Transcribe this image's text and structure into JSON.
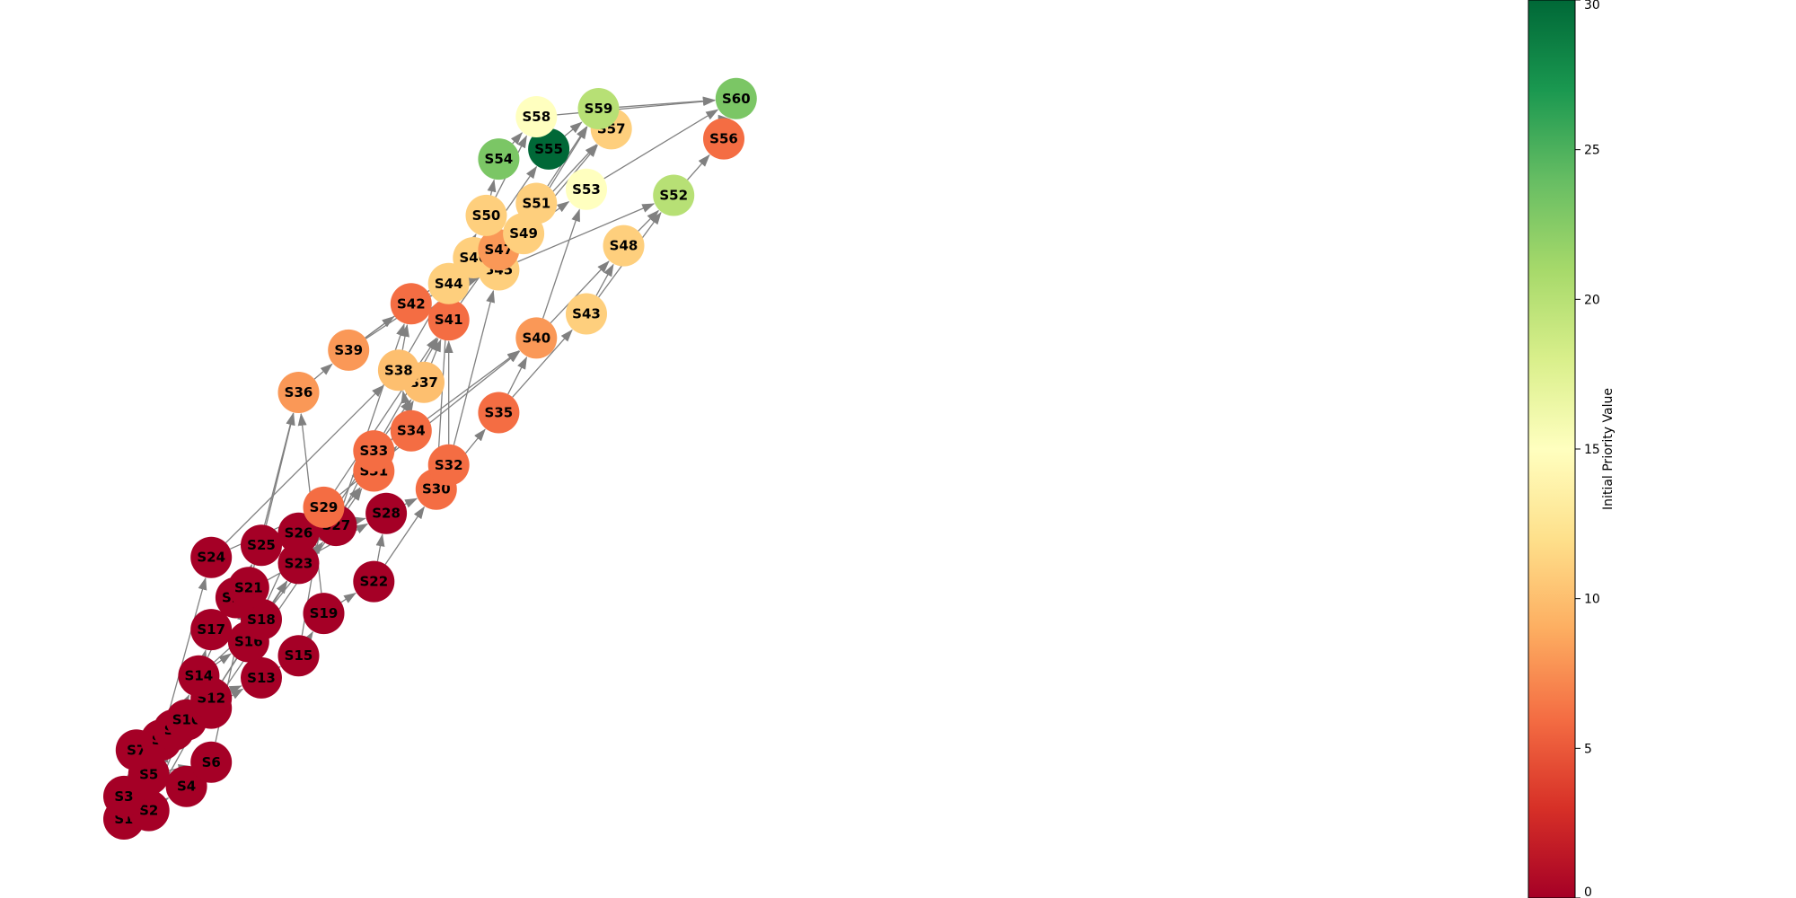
{
  "colorbar": {
    "label": "Initial Priority Value",
    "min": 0,
    "max": 30,
    "ticks": [
      0,
      5,
      10,
      15,
      20,
      25,
      30
    ],
    "colormap": [
      "#a50026",
      "#d73027",
      "#f46d43",
      "#fdae61",
      "#fee08b",
      "#ffffbf",
      "#d9ef8b",
      "#a6d96a",
      "#66bd63",
      "#1a9850",
      "#006837"
    ]
  },
  "nodes": [
    {
      "id": "S1",
      "x": -3.05,
      "y": 1.69,
      "value": 0
    },
    {
      "id": "S2",
      "x": -2.31,
      "y": 1.94,
      "value": 0
    },
    {
      "id": "S3",
      "x": -3.05,
      "y": 2.36,
      "value": 0
    },
    {
      "id": "S4",
      "x": -1.19,
      "y": 2.66,
      "value": 0
    },
    {
      "id": "S5",
      "x": -2.31,
      "y": 3.02,
      "value": 0
    },
    {
      "id": "S6",
      "x": -0.45,
      "y": 3.38,
      "value": 0
    },
    {
      "id": "S7",
      "x": -2.68,
      "y": 3.74,
      "value": 0
    },
    {
      "id": "S8",
      "x": -1.94,
      "y": 4.04,
      "value": 0
    },
    {
      "id": "S9",
      "x": -1.57,
      "y": 4.34,
      "value": 0
    },
    {
      "id": "S10",
      "x": -1.19,
      "y": 4.64,
      "value": 0
    },
    {
      "id": "S11",
      "x": -0.45,
      "y": 4.99,
      "value": 0
    },
    {
      "id": "S12",
      "x": -0.45,
      "y": 5.29,
      "value": 0
    },
    {
      "id": "S13",
      "x": 1.04,
      "y": 5.89,
      "value": 0
    },
    {
      "id": "S14",
      "x": -0.82,
      "y": 5.95,
      "value": 0
    },
    {
      "id": "S15",
      "x": 2.15,
      "y": 6.55,
      "value": 0
    },
    {
      "id": "S16",
      "x": 0.66,
      "y": 6.97,
      "value": 0
    },
    {
      "id": "S17",
      "x": -0.45,
      "y": 7.33,
      "value": 0
    },
    {
      "id": "S18",
      "x": 1.04,
      "y": 7.63,
      "value": 0
    },
    {
      "id": "S19",
      "x": 2.9,
      "y": 7.81,
      "value": 0
    },
    {
      "id": "S20",
      "x": 0.29,
      "y": 8.28,
      "value": 0
    },
    {
      "id": "S21",
      "x": 0.66,
      "y": 8.58,
      "value": 0
    },
    {
      "id": "S22",
      "x": 4.39,
      "y": 8.76,
      "value": 0
    },
    {
      "id": "S23",
      "x": 2.15,
      "y": 9.3,
      "value": 0
    },
    {
      "id": "S24",
      "x": -0.45,
      "y": 9.48,
      "value": 0
    },
    {
      "id": "S25",
      "x": 1.04,
      "y": 9.84,
      "value": 0
    },
    {
      "id": "S26",
      "x": 2.15,
      "y": 10.2,
      "value": 0
    },
    {
      "id": "S27",
      "x": 3.27,
      "y": 10.43,
      "value": 0
    },
    {
      "id": "S28",
      "x": 4.76,
      "y": 10.79,
      "value": 0
    },
    {
      "id": "S29",
      "x": 2.9,
      "y": 10.97,
      "value": 6
    },
    {
      "id": "S30",
      "x": 6.25,
      "y": 11.51,
      "value": 6
    },
    {
      "id": "S31",
      "x": 4.39,
      "y": 12.05,
      "value": 6
    },
    {
      "id": "S32",
      "x": 6.62,
      "y": 12.23,
      "value": 6
    },
    {
      "id": "S33",
      "x": 4.39,
      "y": 12.65,
      "value": 6
    },
    {
      "id": "S34",
      "x": 5.5,
      "y": 13.25,
      "value": 6
    },
    {
      "id": "S35",
      "x": 8.11,
      "y": 13.79,
      "value": 6
    },
    {
      "id": "S36",
      "x": 2.15,
      "y": 14.39,
      "value": 8
    },
    {
      "id": "S37",
      "x": 5.88,
      "y": 14.69,
      "value": 10
    },
    {
      "id": "S38",
      "x": 5.13,
      "y": 15.05,
      "value": 10
    },
    {
      "id": "S39",
      "x": 3.64,
      "y": 15.65,
      "value": 8
    },
    {
      "id": "S40",
      "x": 9.23,
      "y": 16.01,
      "value": 8
    },
    {
      "id": "S41",
      "x": 6.62,
      "y": 16.55,
      "value": 6
    },
    {
      "id": "S42",
      "x": 5.5,
      "y": 17.03,
      "value": 6
    },
    {
      "id": "S43",
      "x": 10.72,
      "y": 16.73,
      "value": 11
    },
    {
      "id": "S44",
      "x": 6.62,
      "y": 17.63,
      "value": 11
    },
    {
      "id": "S45",
      "x": 8.11,
      "y": 18.04,
      "value": 11
    },
    {
      "id": "S46",
      "x": 7.36,
      "y": 18.4,
      "value": 11
    },
    {
      "id": "S47",
      "x": 8.11,
      "y": 18.64,
      "value": 8
    },
    {
      "id": "S48",
      "x": 11.83,
      "y": 18.76,
      "value": 11
    },
    {
      "id": "S49",
      "x": 8.85,
      "y": 19.12,
      "value": 11
    },
    {
      "id": "S50",
      "x": 7.74,
      "y": 19.66,
      "value": 11
    },
    {
      "id": "S51",
      "x": 9.23,
      "y": 20.02,
      "value": 11
    },
    {
      "id": "S52",
      "x": 13.32,
      "y": 20.26,
      "value": 20
    },
    {
      "id": "S53",
      "x": 10.72,
      "y": 20.44,
      "value": 15
    },
    {
      "id": "S54",
      "x": 8.11,
      "y": 21.34,
      "value": 23
    },
    {
      "id": "S55",
      "x": 9.6,
      "y": 21.64,
      "value": 30
    },
    {
      "id": "S56",
      "x": 14.81,
      "y": 21.94,
      "value": 6
    },
    {
      "id": "S57",
      "x": 11.46,
      "y": 22.24,
      "value": 11
    },
    {
      "id": "S58",
      "x": 9.23,
      "y": 22.6,
      "value": 15
    },
    {
      "id": "S59",
      "x": 11.08,
      "y": 22.84,
      "value": 20
    },
    {
      "id": "S60",
      "x": 15.18,
      "y": 23.14,
      "value": 23
    }
  ],
  "edges": [
    [
      "S1",
      "S2"
    ],
    [
      "S1",
      "S3"
    ],
    [
      "S2",
      "S4"
    ],
    [
      "S3",
      "S5"
    ],
    [
      "S3",
      "S7"
    ],
    [
      "S2",
      "S9"
    ],
    [
      "S5",
      "S6"
    ],
    [
      "S4",
      "S6"
    ],
    [
      "S2",
      "S10"
    ],
    [
      "S2",
      "S12"
    ],
    [
      "S7",
      "S8"
    ],
    [
      "S8",
      "S9"
    ],
    [
      "S9",
      "S10"
    ],
    [
      "S10",
      "S11"
    ],
    [
      "S5",
      "S14"
    ],
    [
      "S11",
      "S13"
    ],
    [
      "S12",
      "S13"
    ],
    [
      "S13",
      "S15"
    ],
    [
      "S15",
      "S19"
    ],
    [
      "S19",
      "S22"
    ],
    [
      "S22",
      "S28"
    ],
    [
      "S8",
      "S24"
    ],
    [
      "S14",
      "S17"
    ],
    [
      "S14",
      "S16"
    ],
    [
      "S14",
      "S18"
    ],
    [
      "S14",
      "S20"
    ],
    [
      "S17",
      "S21"
    ],
    [
      "S12",
      "S23"
    ],
    [
      "S16",
      "S23"
    ],
    [
      "S16",
      "S26"
    ],
    [
      "S18",
      "S27"
    ],
    [
      "S18",
      "S23"
    ],
    [
      "S20",
      "S25"
    ],
    [
      "S21",
      "S36"
    ],
    [
      "S24",
      "S29"
    ],
    [
      "S24",
      "S38"
    ],
    [
      "S25",
      "S36"
    ],
    [
      "S26",
      "S27"
    ],
    [
      "S23",
      "S31"
    ],
    [
      "S23",
      "S33"
    ],
    [
      "S27",
      "S28"
    ],
    [
      "S27",
      "S33"
    ],
    [
      "S27",
      "S42"
    ],
    [
      "S29",
      "S41"
    ],
    [
      "S28",
      "S30"
    ],
    [
      "S30",
      "S35"
    ],
    [
      "S22",
      "S30"
    ],
    [
      "S31",
      "S34"
    ],
    [
      "S31",
      "S37"
    ],
    [
      "S33",
      "S37"
    ],
    [
      "S33",
      "S41"
    ],
    [
      "S34",
      "S40"
    ],
    [
      "S35",
      "S40"
    ],
    [
      "S35",
      "S43"
    ],
    [
      "S36",
      "S39"
    ],
    [
      "S39",
      "S42"
    ],
    [
      "S39",
      "S44"
    ],
    [
      "S39",
      "S46"
    ],
    [
      "S38",
      "S42"
    ],
    [
      "S37",
      "S41"
    ],
    [
      "S41",
      "S46"
    ],
    [
      "S41",
      "S47"
    ],
    [
      "S42",
      "S44"
    ],
    [
      "S42",
      "S45"
    ],
    [
      "S32",
      "S45"
    ],
    [
      "S32",
      "S41"
    ],
    [
      "S44",
      "S46"
    ],
    [
      "S44",
      "S47"
    ],
    [
      "S44",
      "S50"
    ],
    [
      "S46",
      "S47"
    ],
    [
      "S46",
      "S55"
    ],
    [
      "S47",
      "S49"
    ],
    [
      "S47",
      "S51"
    ],
    [
      "S47",
      "S57"
    ],
    [
      "S45",
      "S52"
    ],
    [
      "S45",
      "S59"
    ],
    [
      "S49",
      "S53"
    ],
    [
      "S50",
      "S54"
    ],
    [
      "S50",
      "S58"
    ],
    [
      "S51",
      "S59"
    ],
    [
      "S54",
      "S58"
    ],
    [
      "S55",
      "S59"
    ],
    [
      "S58",
      "S60"
    ],
    [
      "S59",
      "S60"
    ],
    [
      "S53",
      "S60"
    ],
    [
      "S56",
      "S60"
    ],
    [
      "S52",
      "S56"
    ],
    [
      "S43",
      "S48"
    ],
    [
      "S48",
      "S52"
    ],
    [
      "S43",
      "S52"
    ],
    [
      "S40",
      "S53"
    ],
    [
      "S40",
      "S48"
    ],
    [
      "S29",
      "S40"
    ],
    [
      "S20",
      "S28"
    ],
    [
      "S12",
      "S18"
    ],
    [
      "S6",
      "S21"
    ],
    [
      "S19",
      "S36"
    ],
    [
      "S15",
      "S29"
    ],
    [
      "S11",
      "S31"
    ],
    [
      "S49",
      "S57"
    ],
    [
      "S38",
      "S44"
    ],
    [
      "S34",
      "S38"
    ],
    [
      "S30",
      "S44"
    ],
    [
      "S45",
      "S47"
    ]
  ]
}
